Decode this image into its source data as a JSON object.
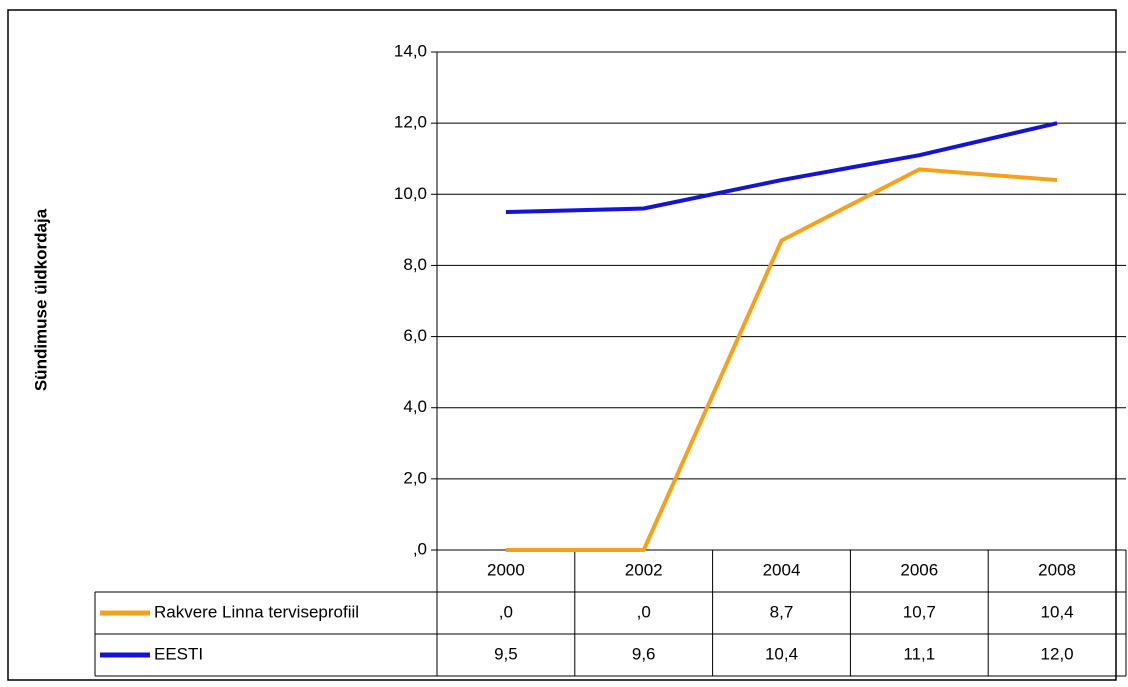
{
  "chart_data": {
    "type": "line",
    "y_label": "Sündimuse üldkordaja",
    "categories": [
      "2000",
      "2002",
      "2004",
      "2006",
      "2008"
    ],
    "series": [
      {
        "name": "Rakvere Linna terviseprofiil",
        "color": "#f7a11a",
        "values": [
          0,
          0,
          8.7,
          10.7,
          10.4
        ],
        "value_labels": [
          ",0",
          ",0",
          "8,7",
          "10,7",
          "10,4"
        ]
      },
      {
        "name": "EESTI",
        "color": "#1414d8",
        "values": [
          9.5,
          9.6,
          10.4,
          11.1,
          12.0
        ],
        "value_labels": [
          "9,5",
          "9,6",
          "10,4",
          "11,1",
          "12,0"
        ]
      }
    ],
    "ylim": [
      0,
      14
    ],
    "yticks": [
      {
        "value": 0,
        "label": ",0"
      },
      {
        "value": 2,
        "label": "2,0"
      },
      {
        "value": 4,
        "label": "4,0"
      },
      {
        "value": 6,
        "label": "6,0"
      },
      {
        "value": 8,
        "label": "8,0"
      },
      {
        "value": 10,
        "label": "10,0"
      },
      {
        "value": 12,
        "label": "12,0"
      },
      {
        "value": 14,
        "label": "14,0"
      }
    ],
    "grid": true
  }
}
